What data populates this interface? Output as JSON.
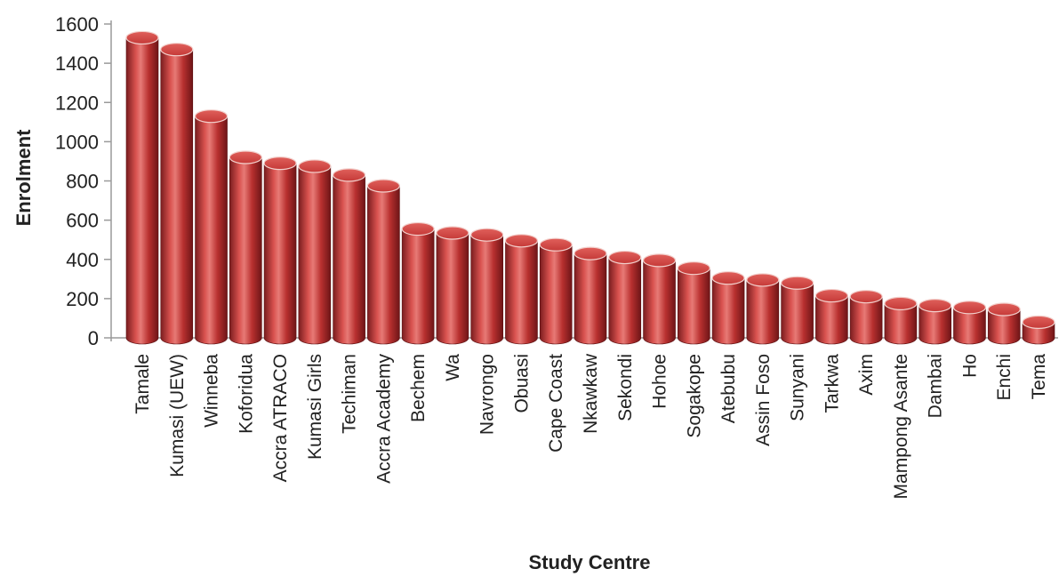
{
  "chart_data": {
    "type": "bar",
    "title": "",
    "xlabel": "Study Centre",
    "ylabel": "Enrolment",
    "ylim": [
      0,
      1600
    ],
    "yticks": [
      0,
      200,
      400,
      600,
      800,
      1000,
      1200,
      1400,
      1600
    ],
    "grid": false,
    "legend": "none",
    "bar_style": "3d-cylinder",
    "colors": {
      "bar": "#c0393b",
      "bar_dark": "#7a1d1f",
      "bar_light": "#e77a76",
      "bar_top": "#d9524f"
    },
    "categories": [
      "Tamale",
      "Kumasi (UEW)",
      "Winneba",
      "Koforidua",
      "Accra ATRACO",
      "Kumasi Girls",
      "Techiman",
      "Accra Academy",
      "Bechem",
      "Wa",
      "Navrongo",
      "Obuasi",
      "Cape Coast",
      "Nkawkaw",
      "Sekondi",
      "Hohoe",
      "Sogakope",
      "Atebubu",
      "Assin Foso",
      "Sunyani",
      "Tarkwa",
      "Axim",
      "Mampong Asante",
      "Dambai",
      "Ho",
      "Enchi",
      "Tema"
    ],
    "values": [
      1530,
      1470,
      1130,
      920,
      890,
      875,
      830,
      775,
      555,
      535,
      525,
      495,
      475,
      430,
      410,
      395,
      355,
      305,
      295,
      280,
      215,
      210,
      175,
      165,
      155,
      145,
      80
    ]
  }
}
